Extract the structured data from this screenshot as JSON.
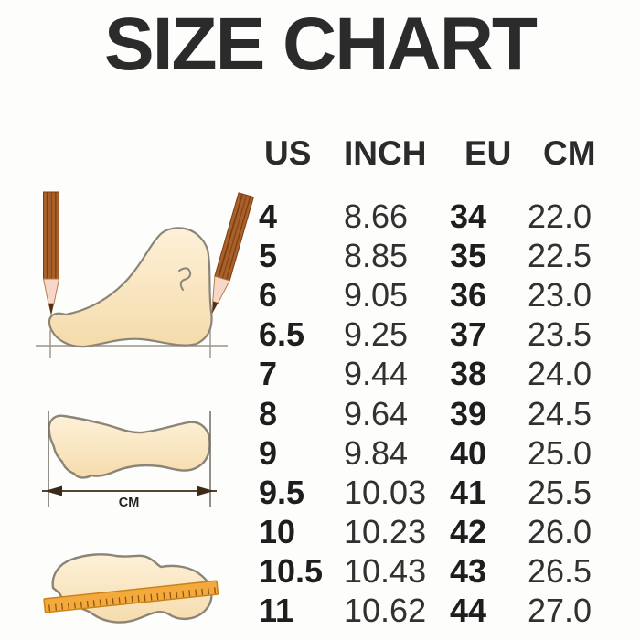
{
  "chart_data": {
    "type": "table",
    "title": "SIZE CHART",
    "columns": [
      "US",
      "INCH",
      "EU",
      "CM"
    ],
    "rows": [
      [
        "4",
        "8.66",
        "34",
        "22.0"
      ],
      [
        "5",
        "8.85",
        "35",
        "22.5"
      ],
      [
        "6",
        "9.05",
        "36",
        "23.0"
      ],
      [
        "6.5",
        "9.25",
        "37",
        "23.5"
      ],
      [
        "7",
        "9.44",
        "38",
        "24.0"
      ],
      [
        "8",
        "9.64",
        "39",
        "24.5"
      ],
      [
        "9",
        "9.84",
        "40",
        "25.0"
      ],
      [
        "9.5",
        "10.03",
        "41",
        "25.5"
      ],
      [
        "10",
        "10.23",
        "42",
        "26.0"
      ],
      [
        "10.5",
        "10.43",
        "43",
        "26.5"
      ],
      [
        "11",
        "10.62",
        "44",
        "27.0"
      ]
    ]
  },
  "measure": {
    "unit_label": "CM"
  },
  "illustrations": {
    "foot_measure": "side view foot measured between two pencils",
    "footprint_length": "footprint with length arrow in cm",
    "footprint_ruler": "footprint with ruler laid across"
  },
  "colors": {
    "background": "#fdfdfc",
    "text": "#2b2b2b",
    "outline": "#8b8577",
    "foot_fill_light": "#fdf1d8",
    "foot_fill_shade": "#f5dbaa",
    "pencil_body": "#a9602a",
    "pencil_stripe": "#7c3f12",
    "pencil_wood": "#f6d8c9",
    "pencil_lead": "#54300f",
    "ruler_fill": "#f4a93c",
    "ruler_edge": "#c9821c",
    "arrow": "#3b2a18",
    "guide_line": "#9a948a"
  }
}
